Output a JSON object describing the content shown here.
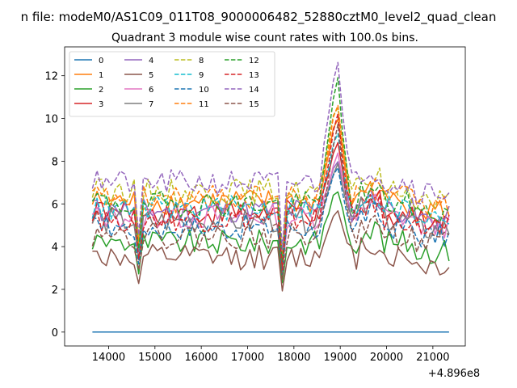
{
  "figure": {
    "suptitle": "n file: modeM0/AS1C09_011T08_9000006482_52880cztM0_level2_quad_clean",
    "title": "Quadrant 3 module wise count rates with 100.0s bins."
  },
  "chart_data": {
    "type": "line",
    "title": "Quadrant 3 module wise count rates with 100.0s bins.",
    "xlabel": "",
    "ylabel": "",
    "x_offset_label": "+4.896e8",
    "x_start": 13650,
    "x_step": 100,
    "xlim": [
      13050,
      21700
    ],
    "ylim": [
      -0.65,
      13.35
    ],
    "xticks": [
      14000,
      15000,
      16000,
      17000,
      18000,
      19000,
      20000,
      21000
    ],
    "xtick_labels": [
      "14000",
      "15000",
      "16000",
      "17000",
      "18000",
      "19000",
      "20000",
      "21000"
    ],
    "yticks": [
      0,
      2,
      4,
      6,
      8,
      10,
      12
    ],
    "ytick_labels": [
      "0",
      "2",
      "4",
      "6",
      "8",
      "10",
      "12"
    ],
    "grid": false,
    "legend_position": "top-left",
    "legend_columns": 4,
    "series": [
      {
        "name": "0",
        "color": "#1f77b4",
        "dash": "solid",
        "base": 0.0,
        "spike": 0.0
      },
      {
        "name": "1",
        "color": "#ff7f0e",
        "dash": "solid",
        "base": 6.1,
        "spike": 10.0
      },
      {
        "name": "2",
        "color": "#2ca02c",
        "dash": "solid",
        "base": 4.2,
        "spike": 6.7
      },
      {
        "name": "3",
        "color": "#d62728",
        "dash": "solid",
        "base": 5.6,
        "spike": 8.8
      },
      {
        "name": "4",
        "color": "#9467bd",
        "dash": "solid",
        "base": 5.7,
        "spike": 8.0
      },
      {
        "name": "5",
        "color": "#8c564b",
        "dash": "solid",
        "base": 3.5,
        "spike": 5.8
      },
      {
        "name": "6",
        "color": "#e377c2",
        "dash": "solid",
        "base": 5.4,
        "spike": 8.3
      },
      {
        "name": "7",
        "color": "#7f7f7f",
        "dash": "solid",
        "base": 5.2,
        "spike": 7.9
      },
      {
        "name": "8",
        "color": "#bcbd22",
        "dash": "dashed",
        "base": 6.6,
        "spike": 10.6
      },
      {
        "name": "9",
        "color": "#17becf",
        "dash": "dashed",
        "base": 5.8,
        "spike": 9.2
      },
      {
        "name": "10",
        "color": "#1f77b4",
        "dash": "dashed",
        "base": 4.9,
        "spike": 7.7
      },
      {
        "name": "11",
        "color": "#ff7f0e",
        "dash": "dashed",
        "base": 6.3,
        "spike": 10.7
      },
      {
        "name": "12",
        "color": "#2ca02c",
        "dash": "dashed",
        "base": 6.0,
        "spike": 11.8
      },
      {
        "name": "13",
        "color": "#d62728",
        "dash": "dashed",
        "base": 5.3,
        "spike": 10.2
      },
      {
        "name": "14",
        "color": "#9467bd",
        "dash": "dashed",
        "base": 7.0,
        "spike": 12.7
      },
      {
        "name": "15",
        "color": "#8c564b",
        "dash": "dashed",
        "base": 4.5,
        "spike": 9.6
      }
    ]
  }
}
